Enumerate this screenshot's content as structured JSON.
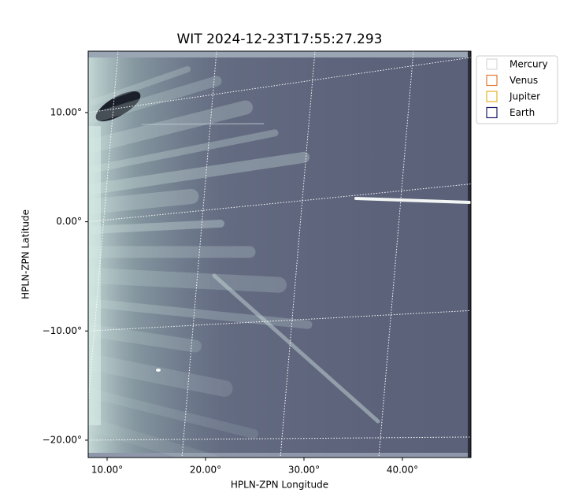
{
  "chart_data": {
    "type": "image",
    "title": "WIT 2024-12-23T17:55:27.293",
    "x_label": "HPLN-ZPN Longitude",
    "y_label": "HPLN-ZPN Latitude",
    "xlim": [
      8.08,
      46.96
    ],
    "ylim": [
      -21.59,
      15.62
    ],
    "xticks": [
      {
        "value": 10,
        "label": "10.00°"
      },
      {
        "value": 20,
        "label": "20.00°"
      },
      {
        "value": 30,
        "label": "30.00°"
      },
      {
        "value": 40,
        "label": "40.00°"
      }
    ],
    "yticks": [
      {
        "value": 10,
        "label": "10.00°"
      },
      {
        "value": 0,
        "label": "0.00°"
      },
      {
        "value": -10,
        "label": "−10.00°"
      },
      {
        "value": -20,
        "label": "−20.00°"
      }
    ],
    "grid": true,
    "legend_loc": "upper left outside",
    "series": [
      {
        "name": "Mercury",
        "color": "#d9d9d9"
      },
      {
        "name": "Venus",
        "color": "#e07b39"
      },
      {
        "name": "Jupiter",
        "color": "#e6b02a"
      },
      {
        "name": "Earth",
        "color": "#1c1c6e"
      }
    ]
  }
}
